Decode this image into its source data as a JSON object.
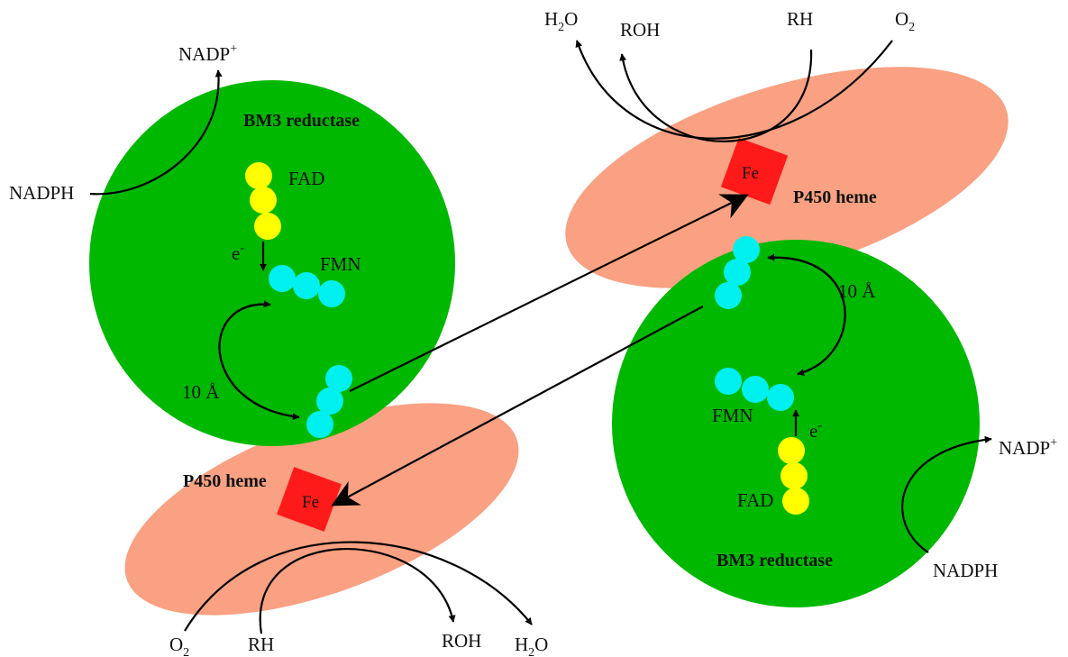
{
  "colors": {
    "reductase": "#00b800",
    "p450": "#f9a182",
    "heme": "#ff1a1a",
    "fad": "#ffff00",
    "fmn": "#00f0f0",
    "arrow": "#000000"
  },
  "labels": {
    "bm3_reductase": "BM3 reductase",
    "p450_heme": "P450 heme",
    "fe": "Fe",
    "fad": "FAD",
    "fmn": "FMN",
    "electron": "e",
    "electron_sup": "-",
    "distance": "10 Å",
    "nadph": "NADPH",
    "nadp": "NADP",
    "nadp_sup": "+",
    "h2o_h": "H",
    "h2o_sub": "2",
    "h2o_o": "O",
    "o2_o": "O",
    "o2_sub": "2",
    "roh": "ROH",
    "rh": "RH"
  },
  "icons": [
    "fe-heme-square-icon",
    "fad-cofactor-icon",
    "fmn-cofactor-icon",
    "reaction-arrow-icon"
  ]
}
